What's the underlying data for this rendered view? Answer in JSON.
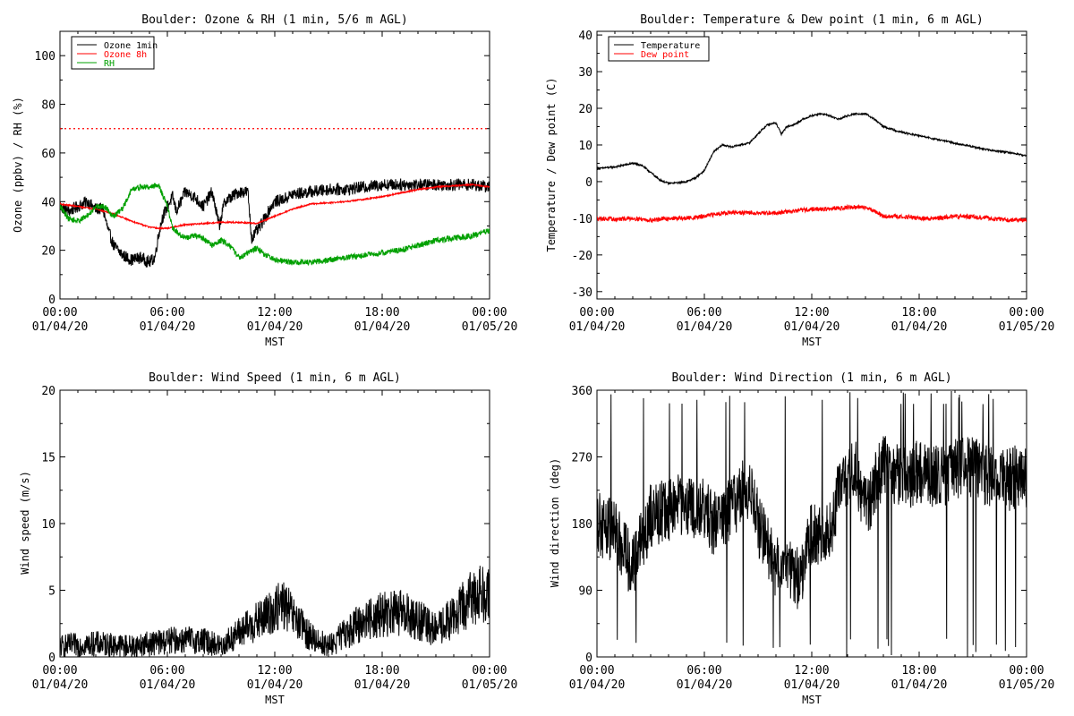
{
  "colors": {
    "black": "#000000",
    "red": "#ff0000",
    "green": "#00a000",
    "frame": "#000000"
  },
  "chart_data": [
    {
      "type": "line",
      "title": "Boulder: Ozone & RH (1 min, 5/6 m AGL)",
      "xlabel": "MST",
      "ylabel": "Ozone (ppbv) / RH (%)",
      "xlim": [
        0,
        24
      ],
      "ylim": [
        0,
        110
      ],
      "xticks": [
        {
          "time": "00:00",
          "date": "01/04/20"
        },
        {
          "time": "06:00",
          "date": "01/04/20"
        },
        {
          "time": "12:00",
          "date": "01/04/20"
        },
        {
          "time": "18:00",
          "date": "01/04/20"
        },
        {
          "time": "00:00",
          "date": "01/05/20"
        }
      ],
      "yticks": [
        "0",
        "20",
        "40",
        "60",
        "80",
        "100"
      ],
      "ytick_values": [
        0,
        20,
        40,
        60,
        80,
        100
      ],
      "legend_position": "top-left",
      "reference_line": {
        "y": 70,
        "color": "#ff0000",
        "style": "dotted"
      },
      "series": [
        {
          "name": "Ozone 1min",
          "color": "#000000",
          "noise": 2.5,
          "x": [
            0,
            0.5,
            1,
            1.5,
            2,
            2.4,
            2.7,
            3,
            3.5,
            4,
            4.5,
            5,
            5.3,
            5.5,
            5.7,
            6,
            6.3,
            6.5,
            7,
            7.5,
            8,
            8.5,
            8.9,
            9.2,
            9.6,
            10,
            10.5,
            10.7,
            10.9,
            11.2,
            11.5,
            11.8,
            12,
            12.5,
            13,
            14,
            15,
            16,
            17,
            18,
            19,
            20,
            21,
            22,
            23,
            24
          ],
          "y": [
            38,
            36,
            38,
            40,
            37,
            37,
            28,
            22,
            18,
            16,
            17,
            15,
            17,
            26,
            33,
            38,
            42,
            36,
            44,
            42,
            38,
            44,
            30,
            40,
            42,
            44,
            44,
            25,
            27,
            30,
            34,
            38,
            40,
            41,
            43,
            44,
            45,
            45,
            46,
            47,
            47,
            47,
            47,
            47,
            47,
            46
          ]
        },
        {
          "name": "Ozone 8h",
          "color": "#ff0000",
          "noise": 0.3,
          "x": [
            0,
            1,
            2,
            3,
            4,
            5,
            5.5,
            6,
            7,
            8,
            9,
            10,
            11,
            12,
            13,
            14,
            15,
            16,
            17,
            18,
            19,
            20,
            21,
            22,
            23,
            24
          ],
          "y": [
            39,
            38,
            37,
            35,
            32,
            29.5,
            29,
            29,
            30.5,
            31,
            31.5,
            31.5,
            31,
            34,
            37,
            39,
            39.5,
            40,
            41,
            42,
            43.5,
            45,
            46,
            46.5,
            47,
            46
          ]
        },
        {
          "name": "RH",
          "color": "#00a000",
          "noise": 1.2,
          "x": [
            0,
            0.5,
            1,
            1.5,
            2,
            2.5,
            3,
            3.5,
            4,
            4.5,
            5,
            5.5,
            6,
            6.3,
            6.6,
            7,
            7.5,
            8,
            8.5,
            9,
            9.5,
            10,
            10.5,
            11,
            11.5,
            12,
            13,
            14,
            15,
            16,
            17,
            18,
            19,
            20,
            21,
            22,
            23,
            24
          ],
          "y": [
            38,
            33,
            32,
            34,
            38,
            38,
            34,
            37,
            45,
            46,
            46,
            47,
            38,
            29,
            27,
            25,
            26,
            25,
            22,
            24,
            22,
            17,
            19,
            21,
            18,
            16,
            15,
            15,
            16,
            17,
            18,
            19,
            20,
            22,
            24,
            25,
            26,
            28
          ]
        }
      ]
    },
    {
      "type": "line",
      "title": "Boulder: Temperature & Dew point (1 min, 6 m AGL)",
      "xlabel": "MST",
      "ylabel": "Temperature / Dew point (C)",
      "xlim": [
        0,
        24
      ],
      "ylim": [
        -32,
        41
      ],
      "xticks": [
        {
          "time": "00:00",
          "date": "01/04/20"
        },
        {
          "time": "06:00",
          "date": "01/04/20"
        },
        {
          "time": "12:00",
          "date": "01/04/20"
        },
        {
          "time": "18:00",
          "date": "01/04/20"
        },
        {
          "time": "00:00",
          "date": "01/05/20"
        }
      ],
      "yticks": [
        "-30",
        "-20",
        "-10",
        "0",
        "10",
        "20",
        "30",
        "40"
      ],
      "ytick_values": [
        -30,
        -20,
        -10,
        0,
        10,
        20,
        30,
        40
      ],
      "legend_position": "top-left",
      "series": [
        {
          "name": "Temperature",
          "color": "#000000",
          "noise": 0.25,
          "x": [
            0,
            0.5,
            1,
            1.5,
            2,
            2.5,
            3,
            3.5,
            4,
            4.5,
            5,
            5.5,
            6,
            6.5,
            7,
            7.5,
            8,
            8.5,
            9,
            9.5,
            10,
            10.3,
            10.6,
            11,
            11.5,
            12,
            12.5,
            13,
            13.5,
            14,
            14.5,
            15,
            15.5,
            16,
            17,
            18,
            19,
            20,
            21,
            22,
            23,
            24
          ],
          "y": [
            3.5,
            3.8,
            4,
            4.5,
            5,
            4.5,
            2.5,
            0.5,
            -0.5,
            -0.3,
            0,
            1,
            3,
            8,
            10,
            9.5,
            10,
            10.5,
            13,
            15.5,
            16,
            13,
            15,
            15.5,
            17,
            18,
            18.5,
            18,
            17,
            18,
            18.5,
            18.5,
            17,
            15,
            13.5,
            12.5,
            11.5,
            10.5,
            9.5,
            8.5,
            8,
            7
          ]
        },
        {
          "name": "Dew point",
          "color": "#ff0000",
          "noise": 0.6,
          "x": [
            0,
            1,
            2,
            3,
            4,
            5,
            6,
            7,
            8,
            9,
            10,
            11,
            12,
            13,
            14,
            15,
            15.5,
            16,
            17,
            18,
            19,
            20,
            21,
            22,
            23,
            24
          ],
          "y": [
            -10,
            -10.3,
            -10,
            -10.5,
            -10,
            -10,
            -9.5,
            -8.5,
            -8.5,
            -8.5,
            -8.5,
            -8,
            -7.5,
            -7.5,
            -7,
            -7,
            -8,
            -9.5,
            -9.5,
            -10,
            -10,
            -9.5,
            -9.5,
            -10,
            -10.5,
            -10.5
          ]
        }
      ]
    },
    {
      "type": "line",
      "title": "Boulder: Wind Speed (1 min, 6 m AGL)",
      "xlabel": "MST",
      "ylabel": "Wind speed (m/s)",
      "xlim": [
        0,
        24
      ],
      "ylim": [
        0,
        20
      ],
      "xticks": [
        {
          "time": "00:00",
          "date": "01/04/20"
        },
        {
          "time": "06:00",
          "date": "01/04/20"
        },
        {
          "time": "12:00",
          "date": "01/04/20"
        },
        {
          "time": "18:00",
          "date": "01/04/20"
        },
        {
          "time": "00:00",
          "date": "01/05/20"
        }
      ],
      "yticks": [
        "0",
        "5",
        "10",
        "15",
        "20"
      ],
      "ytick_values": [
        0,
        5,
        10,
        15,
        20
      ],
      "series": [
        {
          "name": "",
          "color": "#000000",
          "noise": 1.0,
          "x": [
            0,
            1,
            2,
            3,
            4,
            5,
            6,
            7,
            8,
            9,
            10,
            11,
            12,
            12.5,
            13,
            14,
            15,
            16,
            17,
            18,
            19,
            20,
            21,
            22,
            23,
            24
          ],
          "y": [
            0.8,
            0.9,
            1,
            0.9,
            0.8,
            1,
            1.2,
            1.3,
            1.2,
            0.8,
            1.8,
            2.6,
            3.5,
            4,
            3,
            1.5,
            0.8,
            1.8,
            2.8,
            3.2,
            3.3,
            2.8,
            2,
            3,
            4.5,
            5
          ]
        }
      ]
    },
    {
      "type": "line",
      "title": "Boulder: Wind Direction (1 min, 6 m AGL)",
      "xlabel": "MST",
      "ylabel": "Wind direction (deg)",
      "xlim": [
        0,
        24
      ],
      "ylim": [
        0,
        360
      ],
      "xticks": [
        {
          "time": "00:00",
          "date": "01/04/20"
        },
        {
          "time": "06:00",
          "date": "01/04/20"
        },
        {
          "time": "12:00",
          "date": "01/04/20"
        },
        {
          "time": "18:00",
          "date": "01/04/20"
        },
        {
          "time": "00:00",
          "date": "01/05/20"
        }
      ],
      "yticks": [
        "0",
        "90",
        "180",
        "270",
        "360"
      ],
      "ytick_values": [
        0,
        90,
        180,
        270,
        360
      ],
      "series": [
        {
          "name": "",
          "color": "#000000",
          "noise": 20,
          "x": [
            0,
            1,
            2,
            3,
            4,
            5,
            5.5,
            6,
            6.5,
            7,
            7.5,
            8,
            8.5,
            9,
            9.5,
            10,
            10.5,
            11,
            11.5,
            12,
            12.5,
            13,
            13.5,
            14,
            14.5,
            15,
            16,
            17,
            18,
            19,
            20,
            21,
            22,
            23,
            24
          ],
          "y": [
            180,
            170,
            120,
            190,
            200,
            210,
            190,
            200,
            180,
            190,
            200,
            220,
            230,
            180,
            150,
            120,
            140,
            100,
            120,
            170,
            165,
            170,
            220,
            240,
            250,
            200,
            260,
            240,
            250,
            245,
            250,
            255,
            245,
            240,
            245
          ]
        }
      ]
    }
  ]
}
